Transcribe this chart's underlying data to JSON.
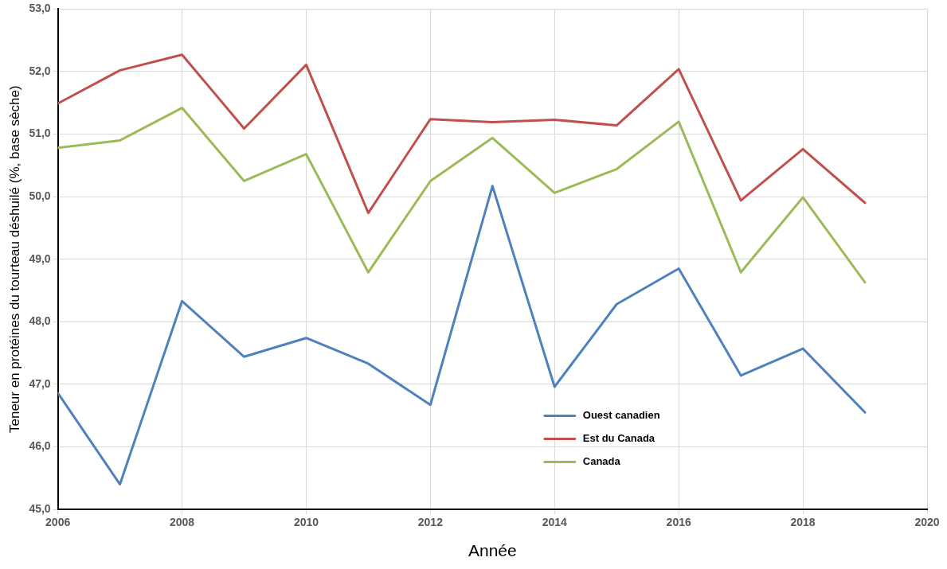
{
  "chart_data": {
    "type": "line",
    "xlabel": "Année",
    "ylabel": "Teneur en protéines du tourteau déshuilé (%, base sèche)",
    "x": [
      2006,
      2007,
      2008,
      2009,
      2010,
      2011,
      2012,
      2013,
      2014,
      2015,
      2016,
      2017,
      2018,
      2019
    ],
    "series": [
      {
        "name": "Ouest canadien",
        "color": "#4f81bd",
        "values": [
          46.86,
          45.4,
          48.33,
          47.44,
          47.74,
          47.33,
          46.67,
          50.17,
          46.96,
          48.28,
          48.85,
          47.14,
          47.57,
          46.55
        ]
      },
      {
        "name": "Est du Canada",
        "color": "#c0504d",
        "values": [
          51.49,
          52.02,
          52.27,
          51.09,
          52.11,
          49.74,
          51.24,
          51.19,
          51.23,
          51.14,
          52.04,
          49.94,
          50.76,
          49.9
        ]
      },
      {
        "name": "Canada",
        "color": "#9bbb59",
        "values": [
          50.78,
          50.9,
          51.42,
          50.25,
          50.68,
          48.79,
          50.25,
          50.94,
          50.06,
          50.44,
          51.2,
          48.79,
          49.99,
          48.63
        ]
      }
    ],
    "xlim": [
      2006,
      2020
    ],
    "xticks": [
      2006,
      2008,
      2010,
      2012,
      2014,
      2016,
      2018,
      2020
    ],
    "ylim": [
      45,
      53
    ],
    "yticks": [
      {
        "value": 45,
        "label": "45,0"
      },
      {
        "value": 46,
        "label": "46,0"
      },
      {
        "value": 47,
        "label": "47,0"
      },
      {
        "value": 48,
        "label": "48,0"
      },
      {
        "value": 49,
        "label": "49,0"
      },
      {
        "value": 50,
        "label": "50,0"
      },
      {
        "value": 51,
        "label": "51,0"
      },
      {
        "value": 52,
        "label": "52,0"
      },
      {
        "value": 53,
        "label": "53,0"
      }
    ],
    "grid": true,
    "legend": "bottom right",
    "marker": "none",
    "line_style": "solid"
  }
}
